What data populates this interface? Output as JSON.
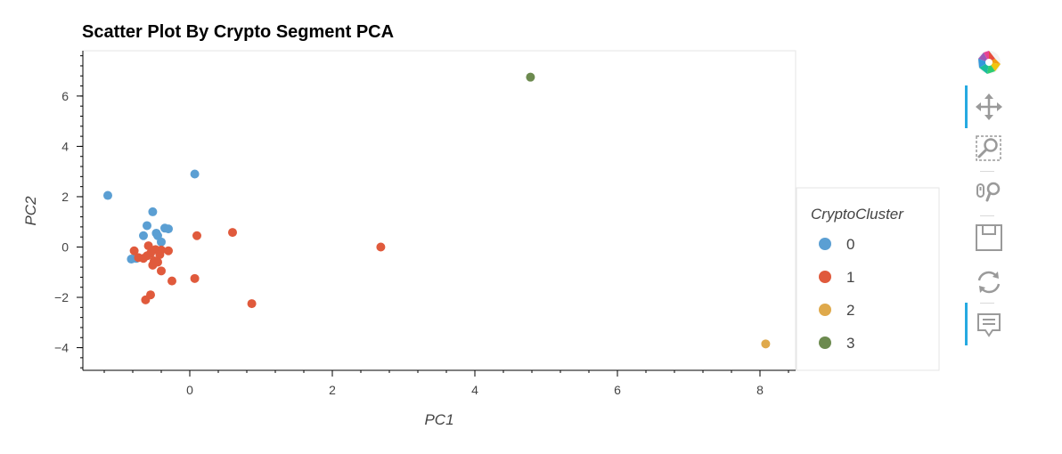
{
  "chart_data": {
    "type": "scatter",
    "title": "Scatter Plot By Crypto Segment PCA",
    "xlabel": "PC1",
    "ylabel": "PC2",
    "xlim": [
      -1.5,
      8.5
    ],
    "ylim": [
      -4.9,
      7.8
    ],
    "x_ticks": [
      0,
      2,
      4,
      6,
      8
    ],
    "y_ticks": [
      -4,
      -2,
      0,
      2,
      4,
      6
    ],
    "grid": false,
    "legend_title": "CryptoCluster",
    "legend_position": "right",
    "series": [
      {
        "name": "0",
        "color": "#5b9fd3",
        "points": [
          [
            -1.15,
            2.05
          ],
          [
            0.07,
            2.9
          ],
          [
            -0.52,
            1.4
          ],
          [
            -0.6,
            0.85
          ],
          [
            -0.35,
            0.75
          ],
          [
            -0.3,
            0.72
          ],
          [
            -0.47,
            0.55
          ],
          [
            -0.45,
            0.45
          ],
          [
            -0.65,
            0.45
          ],
          [
            -0.4,
            0.2
          ],
          [
            -0.82,
            -0.48
          ],
          [
            -0.75,
            -0.45
          ]
        ]
      },
      {
        "name": "1",
        "color": "#e05a3c",
        "points": [
          [
            0.6,
            0.58
          ],
          [
            0.1,
            0.45
          ],
          [
            2.68,
            0.0
          ],
          [
            -0.58,
            0.05
          ],
          [
            -0.48,
            -0.1
          ],
          [
            -0.4,
            -0.12
          ],
          [
            -0.3,
            -0.15
          ],
          [
            -0.55,
            -0.25
          ],
          [
            -0.42,
            -0.3
          ],
          [
            -0.6,
            -0.35
          ],
          [
            -0.78,
            -0.15
          ],
          [
            -0.72,
            -0.42
          ],
          [
            -0.65,
            -0.45
          ],
          [
            -0.5,
            -0.55
          ],
          [
            -0.45,
            -0.6
          ],
          [
            -0.52,
            -0.72
          ],
          [
            -0.4,
            -0.95
          ],
          [
            -0.25,
            -1.35
          ],
          [
            0.07,
            -1.25
          ],
          [
            -0.55,
            -1.9
          ],
          [
            -0.62,
            -2.1
          ],
          [
            0.87,
            -2.25
          ]
        ]
      },
      {
        "name": "2",
        "color": "#dfa94b",
        "points": [
          [
            8.08,
            -3.85
          ]
        ]
      },
      {
        "name": "3",
        "color": "#6c8a4f",
        "points": [
          [
            4.78,
            6.75
          ]
        ]
      }
    ]
  },
  "toolbar": {
    "items": [
      {
        "name": "bokeh-logo-icon"
      },
      {
        "name": "pan-tool-icon"
      },
      {
        "name": "box-zoom-tool-icon"
      },
      {
        "name": "wheel-zoom-tool-icon"
      },
      {
        "name": "save-tool-icon"
      },
      {
        "name": "reset-tool-icon"
      },
      {
        "name": "hover-tool-icon"
      }
    ],
    "active_color": "#26aae1"
  }
}
